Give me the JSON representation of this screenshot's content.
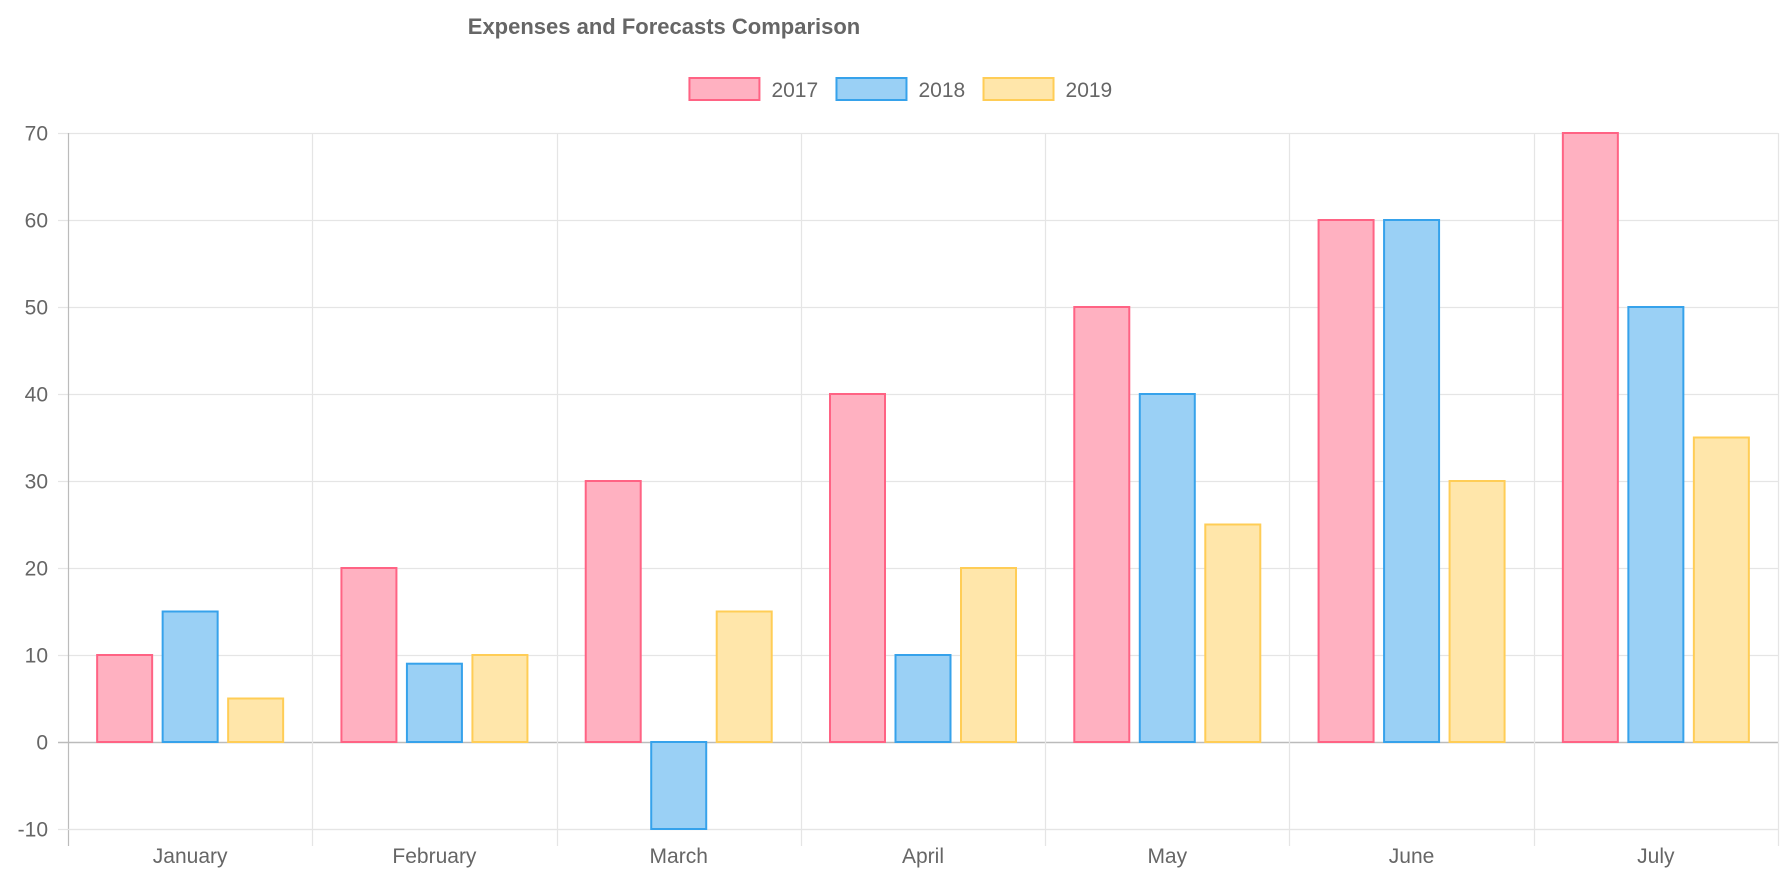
{
  "chart_data": {
    "type": "bar",
    "title": "Expenses and Forecasts Comparison",
    "xlabel": "",
    "ylabel": "",
    "categories": [
      "January",
      "February",
      "March",
      "April",
      "May",
      "June",
      "July"
    ],
    "series": [
      {
        "name": "2017",
        "values": [
          10,
          20,
          30,
          40,
          50,
          60,
          70
        ],
        "fill": "#ffb1c1",
        "stroke": "#ff6384"
      },
      {
        "name": "2018",
        "values": [
          15,
          9,
          -10,
          10,
          40,
          60,
          50
        ],
        "fill": "#9ad0f5",
        "stroke": "#36a2eb"
      },
      {
        "name": "2019",
        "values": [
          5,
          10,
          15,
          20,
          25,
          30,
          35
        ],
        "fill": "#ffe6aa",
        "stroke": "#ffcd56"
      }
    ],
    "ylim": [
      -10,
      70
    ],
    "yticks": [
      70,
      60,
      50,
      40,
      30,
      20,
      10,
      0,
      -10
    ],
    "grid": true,
    "legend_position": "top",
    "colors": {
      "title": "#666666",
      "text": "#666666",
      "grid": "#e5e5e5",
      "zero_line": "#bbbbbb"
    }
  }
}
